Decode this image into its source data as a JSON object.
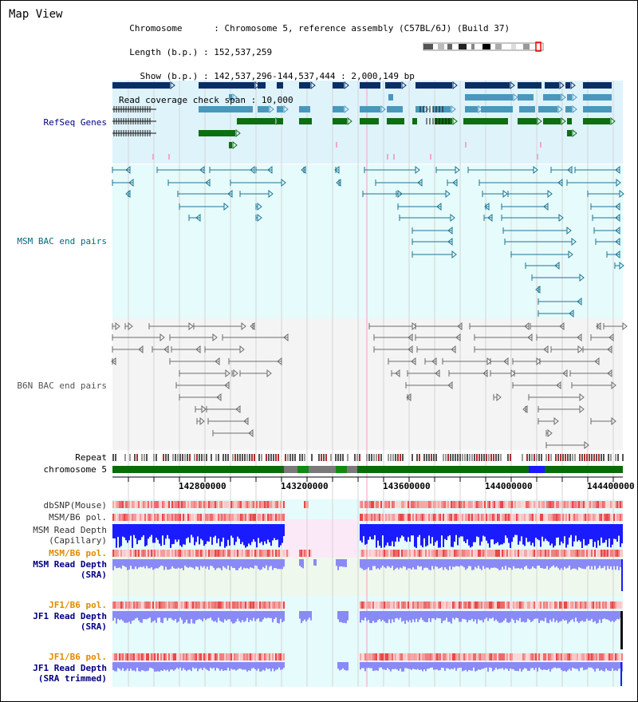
{
  "title": "Map View",
  "info": {
    "chromosome_label": "Chromosome",
    "chromosome_value": "Chromosome 5, reference assembly (C57BL/6J) (Build 37)",
    "length_label": "Length (b.p.)",
    "length_value": "152,537,259",
    "show_label": "Show (b.p.)",
    "show_value": "142,537,296-144,537,444 : 2,000,149 bp",
    "coverage_label": "Read coverage check span",
    "coverage_value": "10,000"
  },
  "tracks": {
    "refseq": "RefSeq Genes",
    "msm_bac": "MSM BAC end pairs",
    "b6n_bac": "B6N BAC end pairs",
    "repeat": "Repeat",
    "chromosome": "chromosome 5",
    "dbsnp": "dbSNP(Mouse)",
    "msm_b6_pol_1": "MSM/B6 pol.",
    "msm_depth_cap_1": "MSM Read Depth",
    "msm_depth_cap_2": "(Capillary)",
    "msm_b6_pol_2": "MSM/B6 pol.",
    "msm_depth_sra_1": "MSM Read Depth",
    "msm_depth_sra_2": "(SRA)",
    "jf1_b6_pol_1": "JF1/B6 pol.",
    "jf1_depth_sra_1": "JF1 Read Depth",
    "jf1_depth_sra_2": "(SRA)",
    "jf1_b6_pol_2": "JF1/B6 pol.",
    "jf1_depth_trim_1": "JF1 Read Depth",
    "jf1_depth_trim_2": "(SRA trimmed)"
  },
  "ticks": [
    "142800000",
    "143200000",
    "143600000",
    "144000000",
    "144400000"
  ],
  "colors": {
    "refseq_bg": "#dff3fb",
    "bac_bg": "#e6fbfb",
    "gene_dark": "#0a2f66",
    "gene_mid": "#4a97bd",
    "gene_green": "#0e6e12",
    "msm_bac": "#1c7493",
    "b6n_bac": "#6b6b6b",
    "label_navy": "#000080",
    "label_teal": "#006b80",
    "label_orange": "#e08a00",
    "depth_blue": "#1b1bff",
    "depth_light": "#8a8af6"
  }
}
